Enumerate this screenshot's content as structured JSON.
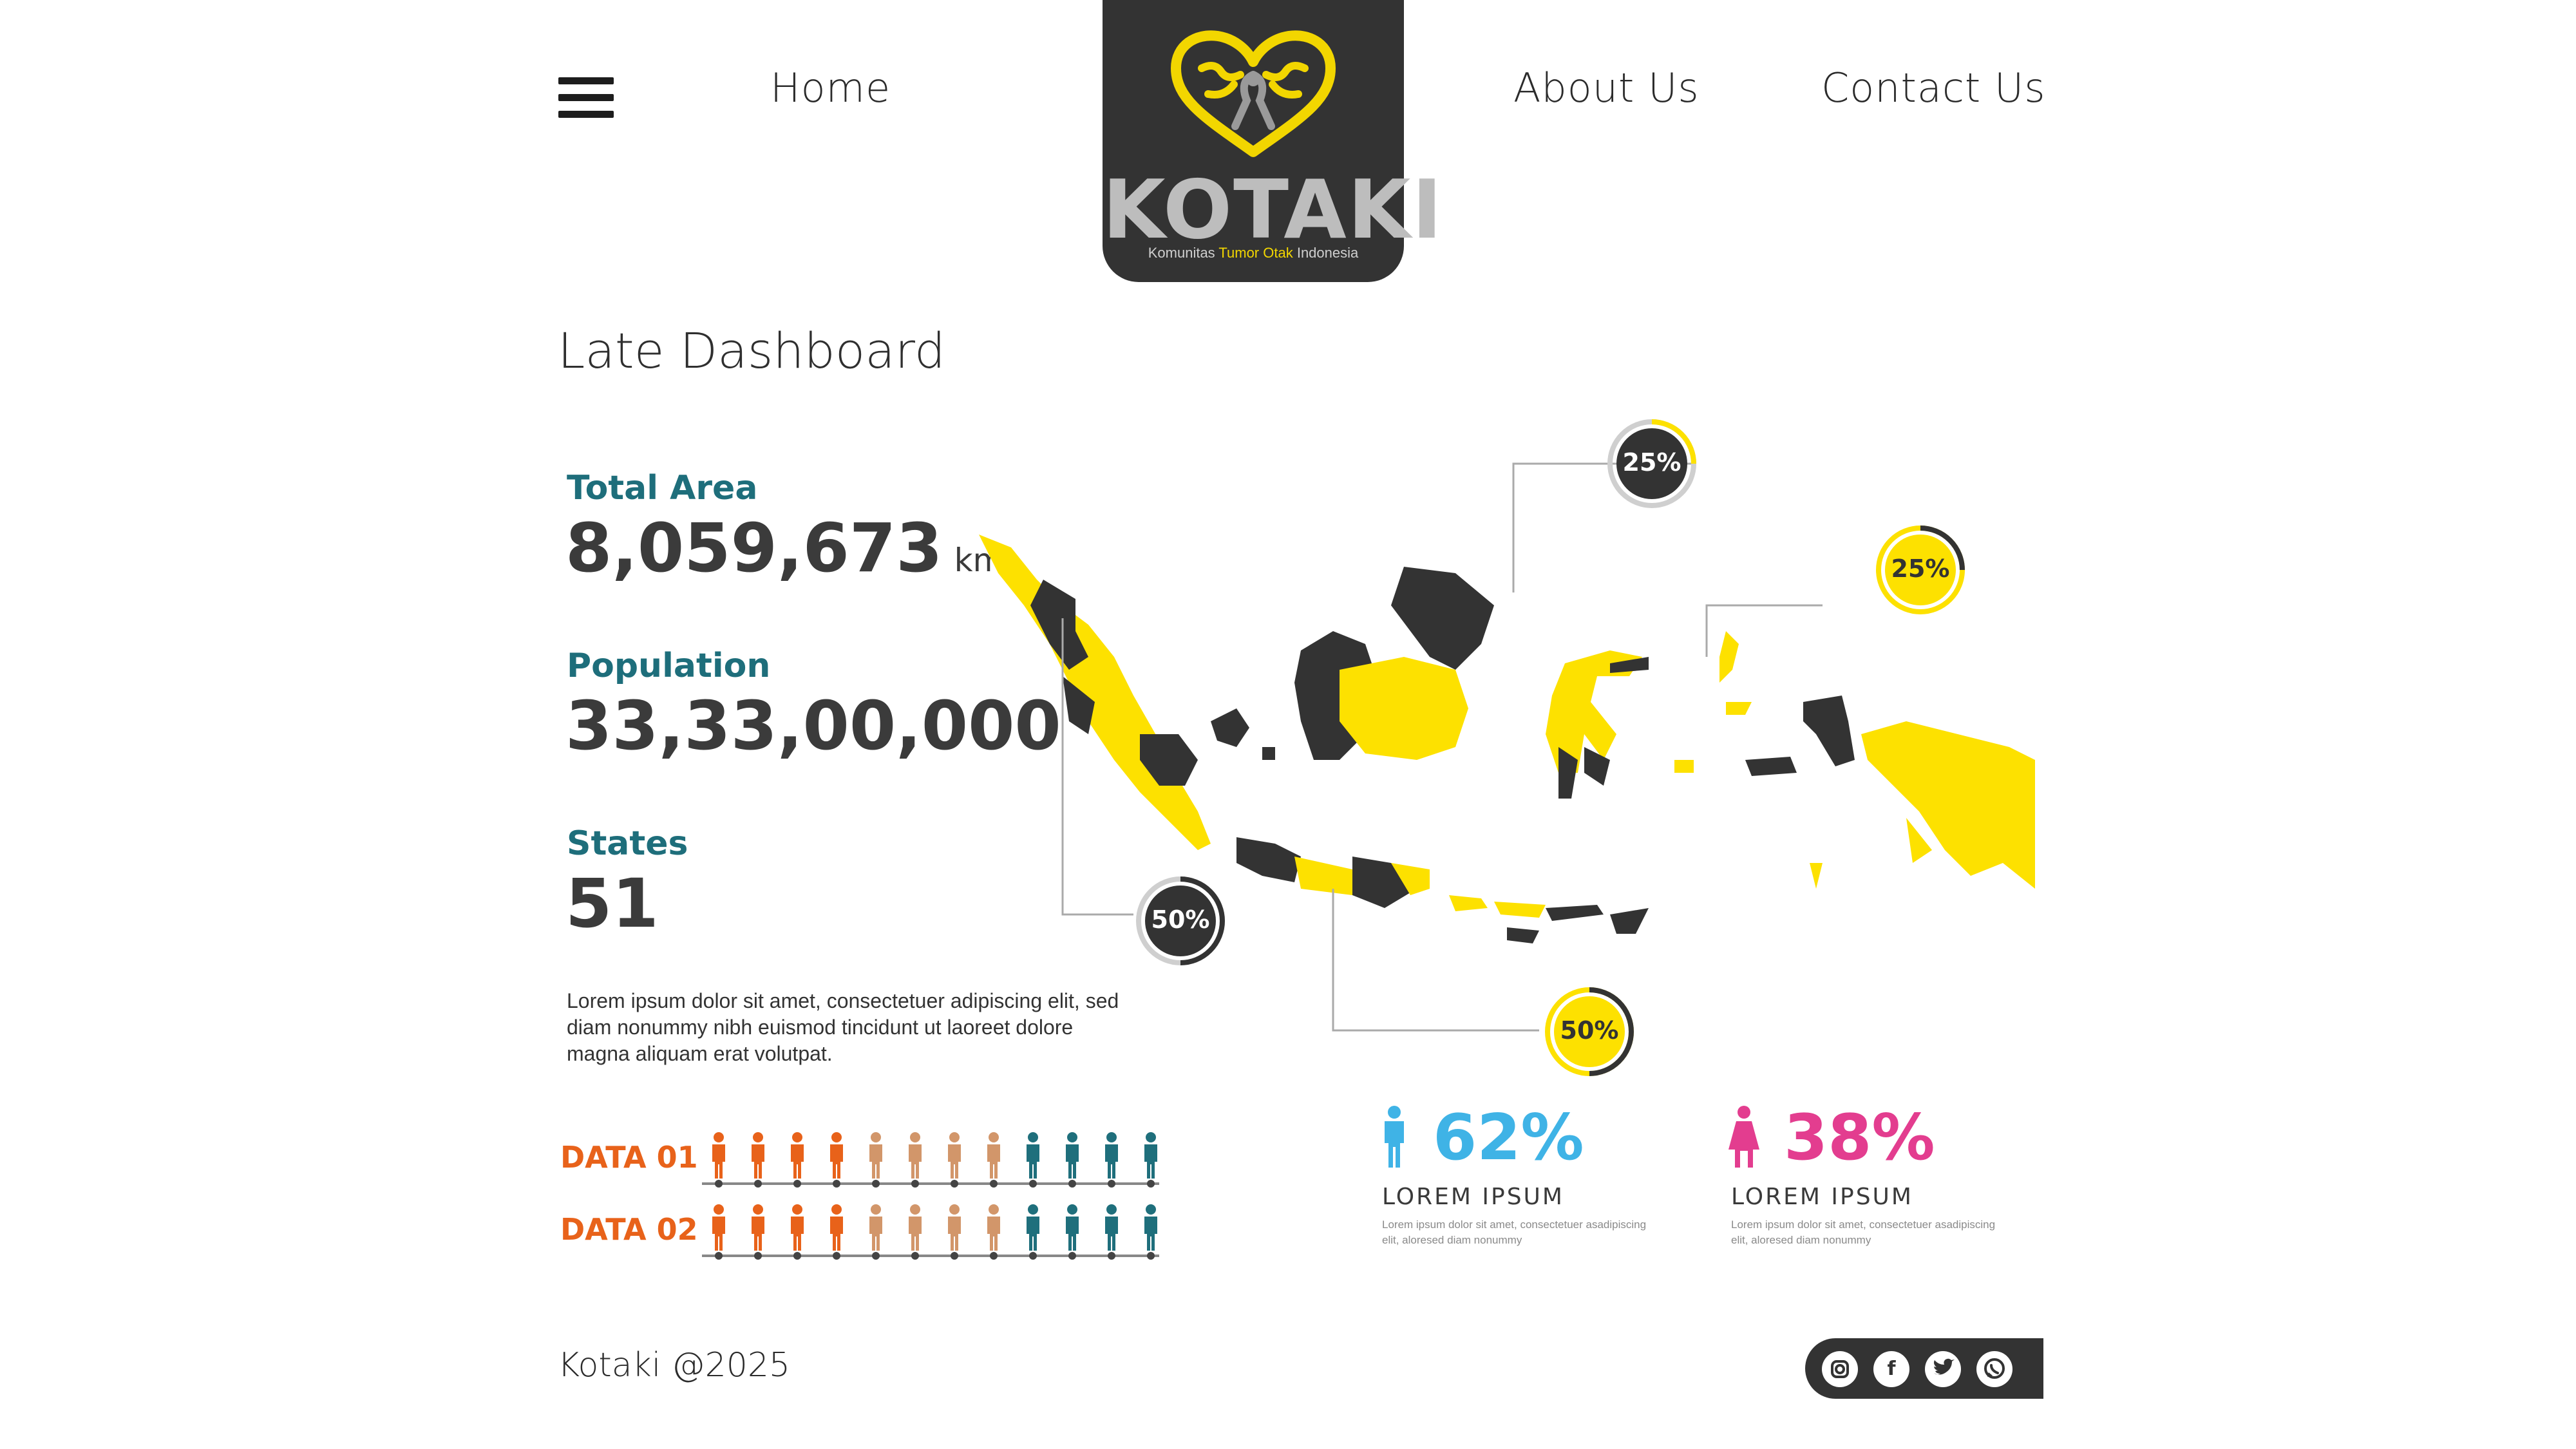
{
  "nav": {
    "home": "Home",
    "about": "About Us",
    "contact": "Contact Us"
  },
  "logo": {
    "wordmark_a": "KOTA",
    "wordmark_b": "KI",
    "sub_a": "Komunitas ",
    "sub_b": "Tumor Otak",
    "sub_c": " Indonesia"
  },
  "page_title": "Late Dashboard",
  "stats": {
    "total_area_label": "Total Area",
    "total_area_value": "8,059,673",
    "total_area_unit": "km",
    "population_label": "Population",
    "population_value": "33,33,00,000",
    "states_label": "States",
    "states_value": "51",
    "lorem": "Lorem ipsum dolor sit amet, consectetuer adipiscing elit, sed diam nonummy nibh euismod tincidunt ut laoreet dolore magna aliquam erat volutpat."
  },
  "data_rows": [
    {
      "label": "DATA 01"
    },
    {
      "label": "DATA 02"
    }
  ],
  "map_callouts": [
    {
      "value": "25%",
      "style": "dark"
    },
    {
      "value": "25%",
      "style": "yellow"
    },
    {
      "value": "50%",
      "style": "dark"
    },
    {
      "value": "50%",
      "style": "yellow"
    }
  ],
  "gender": {
    "male": {
      "pct": "62%",
      "title": "LOREM IPSUM",
      "desc": "Lorem ipsum dolor sit amet, consectetuer asadipiscing elit, aloresed diam nonummy"
    },
    "female": {
      "pct": "38%",
      "title": "LOREM IPSUM",
      "desc": "Lorem ipsum dolor sit amet, consectetuer asadipiscing elit, aloresed diam nonummy"
    }
  },
  "footer": {
    "copyright": "Kotaki @2025",
    "social": [
      "instagram-icon",
      "facebook-icon",
      "twitter-icon",
      "whatsapp-icon"
    ]
  },
  "colors": {
    "dark": "#333333",
    "yellow": "#fde100",
    "teal": "#1e6e7b",
    "orange": "#e8621a",
    "tan": "#d2966a",
    "person_teal": "#1f6f7c",
    "male": "#3fb3e6",
    "female": "#e33d8f"
  }
}
